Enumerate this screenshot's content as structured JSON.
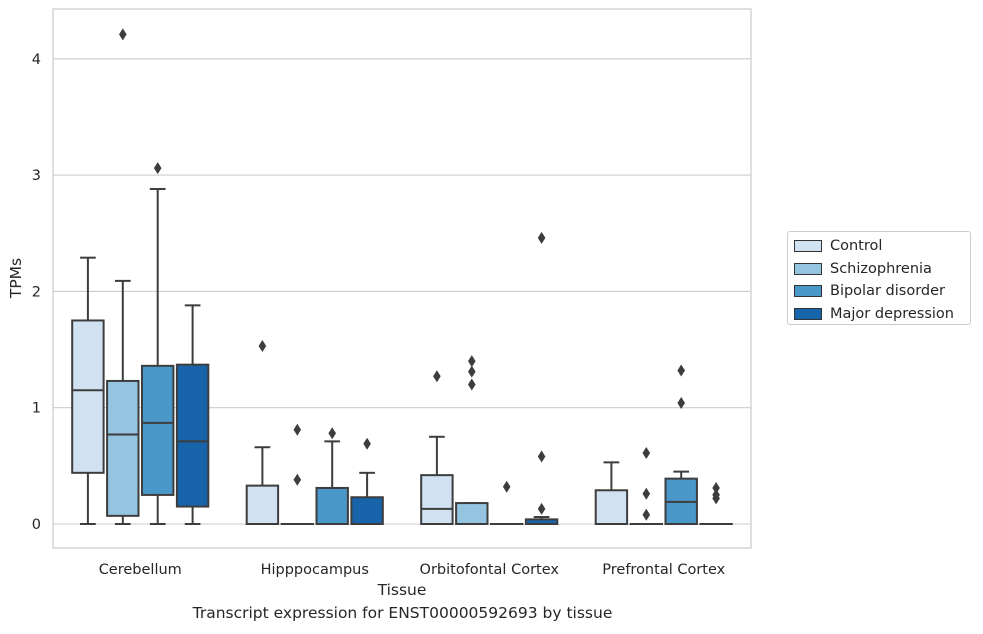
{
  "chart_data": {
    "type": "box",
    "xlabel": "Tissue",
    "ylabel": "TPMs",
    "caption": "Transcript expression for ENST00000592693 by tissue",
    "ylim": [
      -0.2,
      4.4
    ],
    "yticks": [
      0,
      1,
      2,
      3,
      4
    ],
    "grid": "horizontal",
    "legend_position": "right",
    "categories": [
      "Cerebellum",
      "Hipppocampus",
      "Orbitofontal Cortex",
      "Prefrontal Cortex"
    ],
    "series": [
      {
        "name": "Control",
        "color": "#d0e1f2",
        "boxes": [
          {
            "q1": 0.44,
            "median": 1.15,
            "q3": 1.75,
            "whisker_low": 0,
            "whisker_high": 2.29,
            "outliers": []
          },
          {
            "q1": 0,
            "median": 0,
            "q3": 0.33,
            "whisker_low": 0,
            "whisker_high": 0.66,
            "outliers": [
              1.53
            ]
          },
          {
            "q1": 0,
            "median": 0.13,
            "q3": 0.42,
            "whisker_low": 0,
            "whisker_high": 0.75,
            "outliers": [
              1.27
            ]
          },
          {
            "q1": 0,
            "median": 0,
            "q3": 0.29,
            "whisker_low": 0,
            "whisker_high": 0.53,
            "outliers": []
          }
        ]
      },
      {
        "name": "Schizophrenia",
        "color": "#94c4df",
        "boxes": [
          {
            "q1": 0.07,
            "median": 0.77,
            "q3": 1.23,
            "whisker_low": 0,
            "whisker_high": 2.09,
            "outliers": [
              4.21
            ]
          },
          {
            "q1": 0,
            "median": 0,
            "q3": 0,
            "whisker_low": 0,
            "whisker_high": 0,
            "outliers": [
              0.81,
              0.38
            ]
          },
          {
            "q1": 0,
            "median": 0,
            "q3": 0.18,
            "whisker_low": 0,
            "whisker_high": 0.18,
            "outliers": [
              1.4,
              1.31,
              1.2
            ]
          },
          {
            "q1": 0,
            "median": 0,
            "q3": 0,
            "whisker_low": 0,
            "whisker_high": 0,
            "outliers": [
              0.61,
              0.26,
              0.08
            ]
          }
        ]
      },
      {
        "name": "Bipolar disorder",
        "color": "#4a98c9",
        "boxes": [
          {
            "q1": 0.25,
            "median": 0.87,
            "q3": 1.36,
            "whisker_low": 0,
            "whisker_high": 2.88,
            "outliers": [
              3.06
            ]
          },
          {
            "q1": 0,
            "median": 0,
            "q3": 0.31,
            "whisker_low": 0,
            "whisker_high": 0.71,
            "outliers": [
              0.78
            ]
          },
          {
            "q1": 0,
            "median": 0,
            "q3": 0,
            "whisker_low": 0,
            "whisker_high": 0,
            "outliers": [
              0.32
            ]
          },
          {
            "q1": 0,
            "median": 0.19,
            "q3": 0.39,
            "whisker_low": 0,
            "whisker_high": 0.45,
            "outliers": [
              1.32,
              1.04
            ]
          }
        ]
      },
      {
        "name": "Major depression",
        "color": "#1764ab",
        "boxes": [
          {
            "q1": 0.15,
            "median": 0.71,
            "q3": 1.37,
            "whisker_low": 0,
            "whisker_high": 1.88,
            "outliers": []
          },
          {
            "q1": 0,
            "median": 0,
            "q3": 0.23,
            "whisker_low": 0,
            "whisker_high": 0.44,
            "outliers": [
              0.69
            ]
          },
          {
            "q1": 0,
            "median": 0,
            "q3": 0.04,
            "whisker_low": 0,
            "whisker_high": 0.06,
            "outliers": [
              2.46,
              0.58,
              0.13
            ]
          },
          {
            "q1": 0,
            "median": 0,
            "q3": 0,
            "whisker_low": 0,
            "whisker_high": 0,
            "outliers": [
              0.31,
              0.25,
              0.22
            ]
          }
        ]
      }
    ]
  }
}
